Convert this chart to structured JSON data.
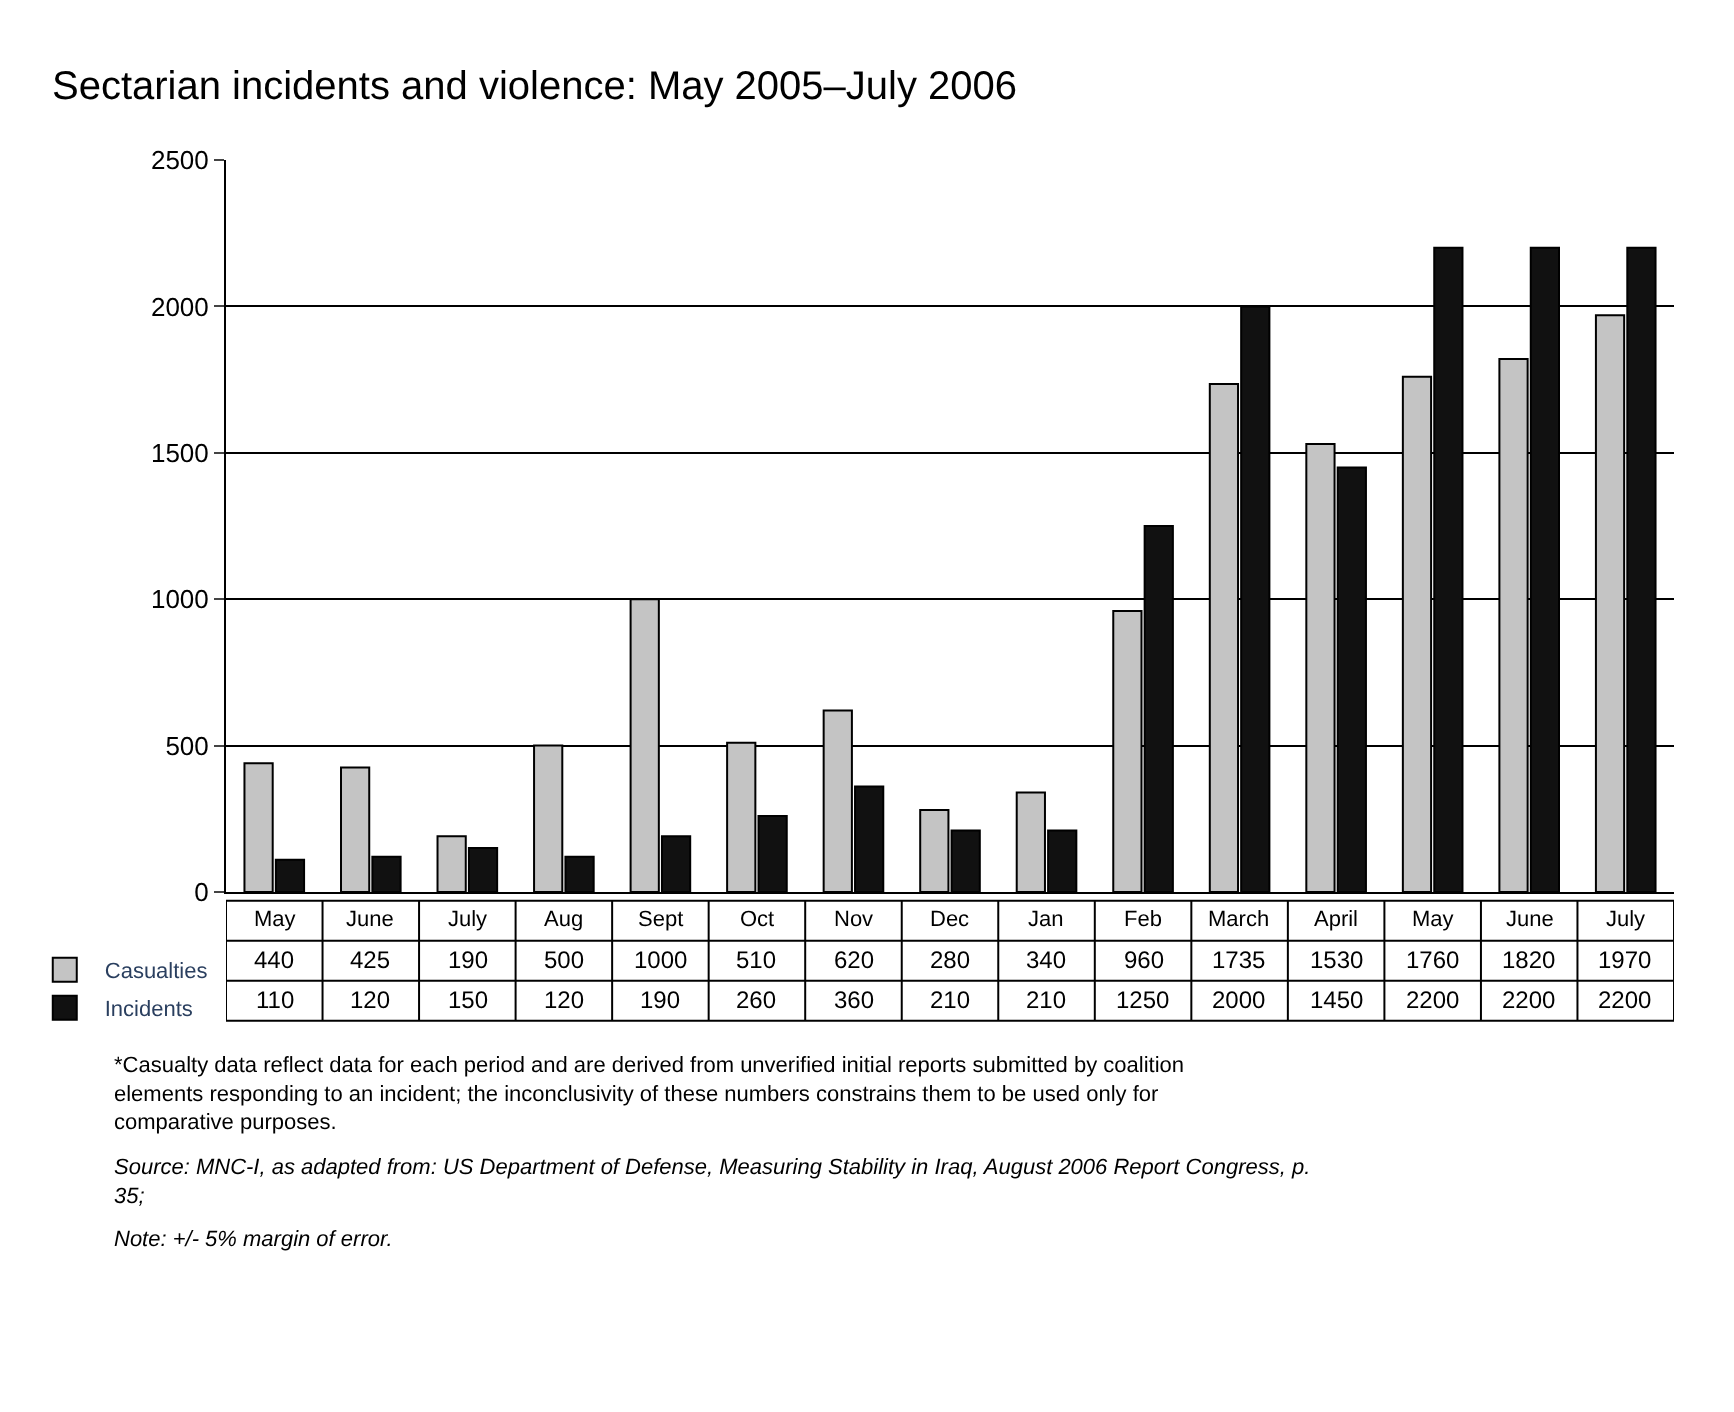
{
  "chart_data": {
    "type": "bar",
    "title": "Sectarian incidents and violence: May 2005–July 2006",
    "categories": [
      "May",
      "June",
      "July",
      "Aug",
      "Sept",
      "Oct",
      "Nov",
      "Dec",
      "Jan",
      "Feb",
      "March",
      "April",
      "May",
      "June",
      "July"
    ],
    "series": [
      {
        "name": "Casualties",
        "color": "#c4c4c4",
        "values": [
          440,
          425,
          190,
          500,
          1000,
          510,
          620,
          280,
          340,
          960,
          1735,
          1530,
          1760,
          1820,
          1970
        ]
      },
      {
        "name": "Incidents",
        "color": "#111111",
        "values": [
          110,
          120,
          150,
          120,
          190,
          260,
          360,
          210,
          210,
          1250,
          2000,
          1450,
          2200,
          2200,
          2200
        ]
      }
    ],
    "ylim": [
      0,
      2500
    ],
    "yticks": [
      0,
      500,
      1000,
      1500,
      2000,
      2500
    ],
    "grid": "y",
    "legend": "bottom left",
    "data_labels": true,
    "annotations": [
      "*Casualty data reflect data for each period and are derived from unverified initial reports submitted by coalition elements responding to an incident; the inconclusivity of these numbers constrains them to be used only for comparative purposes.",
      "Source: MNC-I, as adapted from: US Department of Defense, Measuring Stability in Iraq, August 2006 Report Congress, p. 35;",
      "Note: +/- 5% margin of error."
    ]
  }
}
